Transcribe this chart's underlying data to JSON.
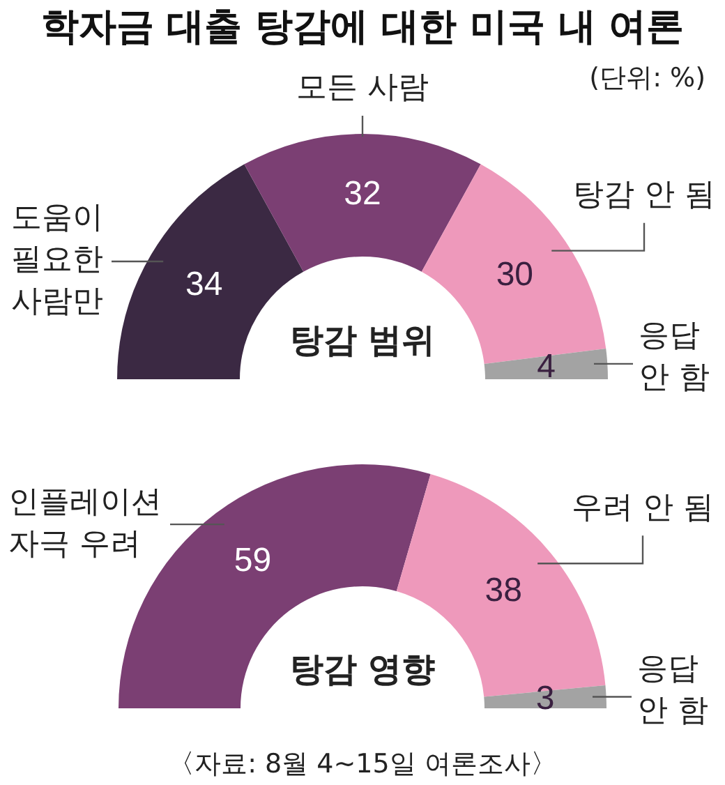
{
  "chart_data": [
    {
      "type": "donut",
      "title": "학자금 대출 탕감에 대한 미국 내 여론",
      "subtitle": "(단위: %)",
      "categories": [
        "도움이\n필요한\n사람만",
        "모든 사람",
        "탕감 안 됨",
        "응답\n안 함"
      ],
      "values": [
        34,
        32,
        30,
        4
      ],
      "colors": [
        "#3b2943",
        "#7b3f73",
        "#ee99bb",
        "#a3a3a3"
      ],
      "data_labels": true,
      "annotations": [
        "탕감 범위"
      ]
    },
    {
      "type": "donut",
      "categories": [
        "인플레이션\n자극 우려",
        "우려 안 됨",
        "응답\n안 함"
      ],
      "values": [
        59,
        38,
        3
      ],
      "colors": [
        "#7b3f73",
        "#ee99bb",
        "#a3a3a3"
      ],
      "data_labels": true,
      "annotations": [
        "탕감 영향",
        "〈자료: 8월 4~15일 여론조사〉"
      ]
    }
  ]
}
